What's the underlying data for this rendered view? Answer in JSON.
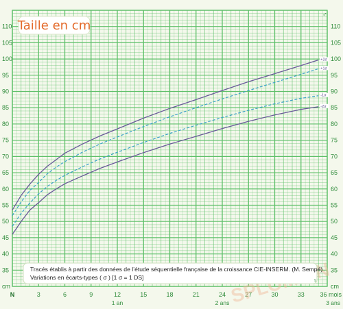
{
  "chart_data": {
    "type": "line",
    "title": "Taille en cm",
    "y_unit": "cm",
    "x_start_label": "N",
    "x_unit": "mois",
    "xlim": [
      0,
      36
    ],
    "ylim": [
      30,
      115
    ],
    "x_ticks": [
      3,
      6,
      9,
      12,
      15,
      18,
      21,
      24,
      27,
      30,
      33,
      36
    ],
    "y_ticks": [
      35,
      40,
      45,
      50,
      55,
      60,
      65,
      70,
      75,
      80,
      85,
      90,
      95,
      100,
      105,
      110
    ],
    "x_sub_labels": [
      {
        "x": 12,
        "label": "1 an"
      },
      {
        "x": 24,
        "label": "2 ans"
      },
      {
        "x": 36,
        "label": "3 ans"
      }
    ],
    "x_end_label": "36 mois",
    "symbols": {
      "top": "♂",
      "bottom": "♀"
    },
    "series": [
      {
        "name": "+2σ",
        "style": "solid",
        "color": "#6a5a9a",
        "x": [
          0,
          1,
          2,
          3,
          4,
          5,
          6,
          8,
          10,
          12,
          15,
          18,
          21,
          24,
          27,
          30,
          33,
          35
        ],
        "values": [
          53.5,
          58,
          61.5,
          64.5,
          67,
          69,
          71,
          73.8,
          76.3,
          78.5,
          81.8,
          84.8,
          87.5,
          90.3,
          93,
          95.5,
          98,
          99.7
        ]
      },
      {
        "name": "+1σ",
        "style": "dashed",
        "color": "#3aa0c8",
        "x": [
          0,
          1,
          2,
          3,
          4,
          5,
          6,
          8,
          10,
          12,
          15,
          18,
          21,
          24,
          27,
          30,
          33,
          35
        ],
        "values": [
          51.8,
          56,
          59.5,
          62,
          64.7,
          66.7,
          68.4,
          71.3,
          73.8,
          76,
          79.2,
          82.2,
          85,
          87.7,
          90.3,
          92.8,
          95.3,
          97
        ]
      },
      {
        "name": "-1σ",
        "style": "dashed",
        "color": "#3aa0c8",
        "x": [
          0,
          1,
          2,
          3,
          4,
          5,
          6,
          8,
          10,
          12,
          15,
          18,
          21,
          24,
          27,
          30,
          33,
          35
        ],
        "values": [
          48.5,
          52.5,
          55.7,
          58.5,
          60.8,
          62.6,
          64.2,
          66.8,
          69.2,
          71.3,
          74.3,
          77.1,
          79.6,
          82,
          84.2,
          86.2,
          87.9,
          88.7
        ]
      },
      {
        "name": "-2σ",
        "style": "solid",
        "color": "#6a5a9a",
        "x": [
          0,
          1,
          2,
          3,
          4,
          5,
          6,
          8,
          10,
          12,
          15,
          18,
          21,
          24,
          27,
          30,
          33,
          35
        ],
        "values": [
          46,
          50,
          53.5,
          55.8,
          58.2,
          60,
          61.6,
          64,
          66.3,
          68.3,
          71.2,
          73.8,
          76.2,
          78.6,
          80.8,
          82.8,
          84.5,
          85.3
        ]
      }
    ],
    "note_lines": [
      "Tracés établis à partir des données de l’étude séquentielle française de la croissance CIE-INSERM. (M. Sempé)",
      "Variations en écarts-types ( σ ) [1 σ = 1 DS]"
    ],
    "watermark": "SPLOMR.N",
    "colors": {
      "grid": "#5fc06a",
      "background": "#f4f8ec",
      "title": "#e36a2a",
      "axis_text": "#2e8b3a"
    }
  }
}
